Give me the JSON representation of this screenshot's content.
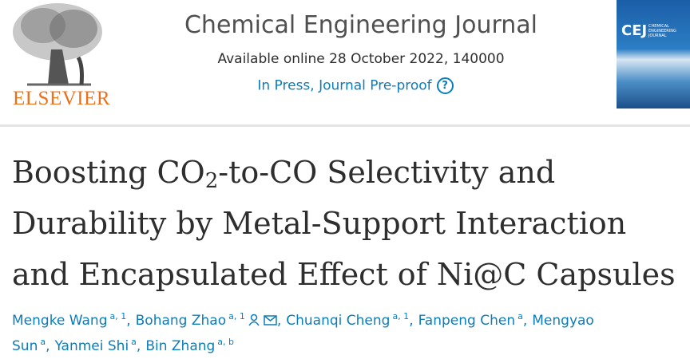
{
  "header": {
    "publisher": "ELSEVIER",
    "journal": "Chemical Engineering Journal",
    "available": "Available online 28 October 2022, 140000",
    "status": "In Press, Journal Pre-proof",
    "cover": {
      "abbr": "CEJ",
      "name": "CHEMICAL ENGINEERING JOURNAL"
    }
  },
  "article": {
    "title": {
      "parts": [
        "Boosting CO",
        "2",
        "-to-CO Selectivity and",
        "Durability by Metal-Support Interaction",
        "and Encapsulated Effect of Ni@C Capsules"
      ]
    },
    "authors": [
      {
        "name": "Mengke Wang",
        "sup": "a, 1"
      },
      {
        "name": "Bohang Zhao",
        "sup": "a, 1",
        "icons": true
      },
      {
        "name": "Chuanqi Cheng",
        "sup": "a, 1"
      },
      {
        "name": "Fanpeng Chen",
        "sup": "a"
      },
      {
        "name": "Mengyao Sun",
        "sup": "a"
      },
      {
        "name": "Yanmei Shi",
        "sup": "a"
      },
      {
        "name": "Bin Zhang",
        "sup": "a, b"
      }
    ]
  }
}
